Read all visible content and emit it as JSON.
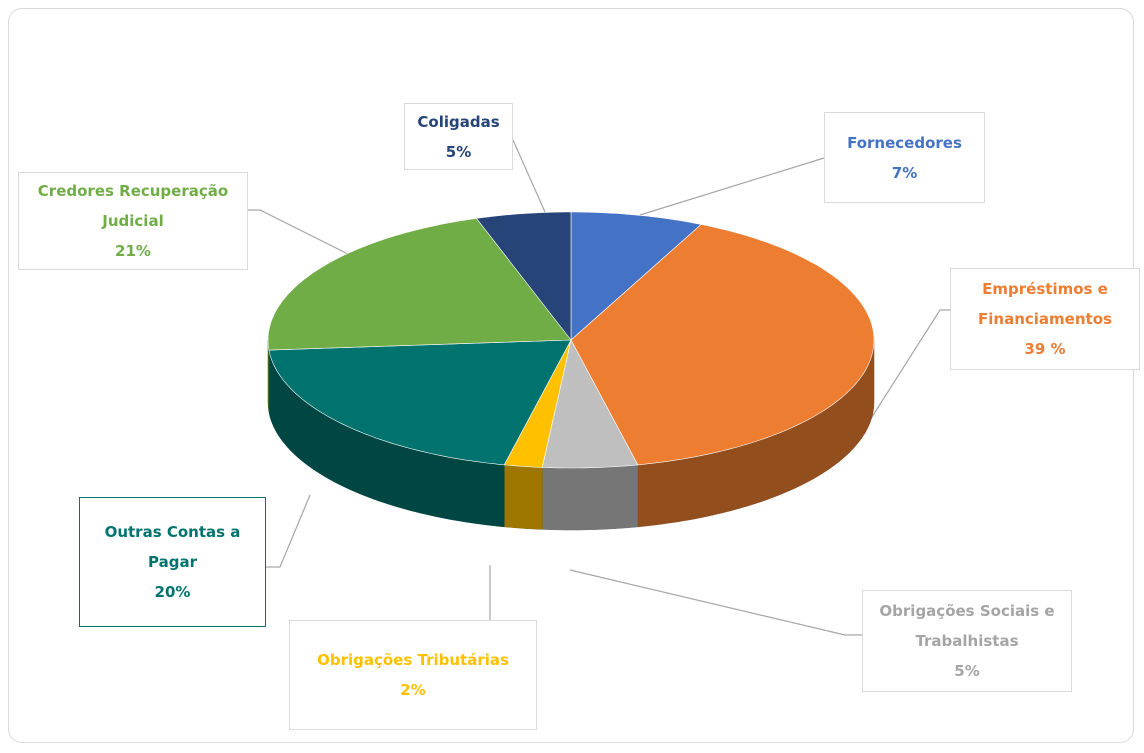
{
  "chart_data": {
    "type": "pie",
    "style": "3d",
    "categories": [
      "Fornecedores",
      "Empréstimos e Financiamentos",
      "Obrigações Sociais e Trabalhistas",
      "Obrigações Tributárias",
      "Outras Contas a Pagar",
      "Credores Recuperação Judicial",
      "Coligadas"
    ],
    "values": [
      7,
      39,
      5,
      2,
      20,
      21,
      5
    ],
    "value_labels": [
      "7%",
      "39 %",
      "5%",
      "2%",
      "20%",
      "21%",
      "5%"
    ],
    "colors": [
      "#4472c4",
      "#ed7d31",
      "#bfbfbf",
      "#ffc000",
      "#00736e",
      "#70ad47",
      "#264478"
    ],
    "label_colors": [
      "#4472c4",
      "#ed7d31",
      "#a5a5a5",
      "#ffc000",
      "#00736e",
      "#70ad47",
      "#264478"
    ]
  }
}
